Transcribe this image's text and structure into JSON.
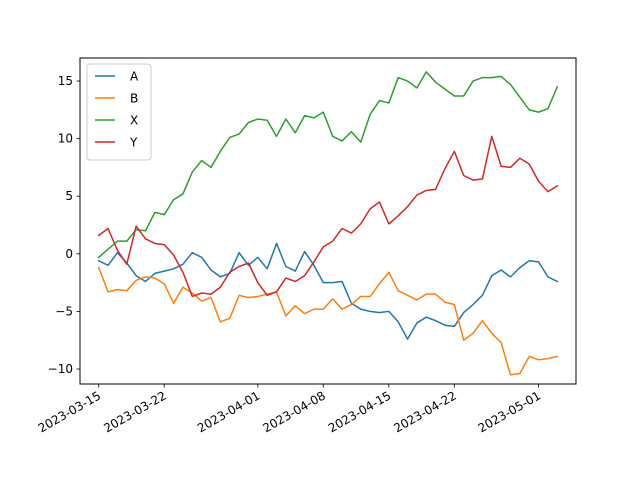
{
  "chart_data": {
    "type": "line",
    "title": "",
    "xlabel": "",
    "ylabel": "",
    "x_axis": {
      "kind": "date",
      "range": [
        "2023-03-13",
        "2023-05-05"
      ],
      "ticks": [
        "2023-03-15",
        "2023-03-22",
        "2023-04-01",
        "2023-04-08",
        "2023-04-15",
        "2023-04-22",
        "2023-05-01"
      ]
    },
    "y_axis": {
      "range": [
        -11.3,
        17
      ],
      "ticks": [
        -10,
        -5,
        0,
        5,
        10,
        15
      ],
      "tick_labels": [
        "−10",
        "−5",
        "0",
        "5",
        "10",
        "15"
      ]
    },
    "grid": false,
    "legend_position": "top-left",
    "series": [
      {
        "name": "A",
        "color": "#1f77b4",
        "dates": [
          "2023-03-15",
          "2023-03-16",
          "2023-03-17",
          "2023-03-18",
          "2023-03-19",
          "2023-03-20",
          "2023-03-21",
          "2023-03-22",
          "2023-03-23",
          "2023-03-24",
          "2023-03-25",
          "2023-03-26",
          "2023-03-27",
          "2023-03-28",
          "2023-03-29",
          "2023-03-30",
          "2023-03-31",
          "2023-04-01",
          "2023-04-02",
          "2023-04-03",
          "2023-04-04",
          "2023-04-05",
          "2023-04-06",
          "2023-04-07",
          "2023-04-08",
          "2023-04-09",
          "2023-04-10",
          "2023-04-11",
          "2023-04-12",
          "2023-04-13",
          "2023-04-14",
          "2023-04-15",
          "2023-04-16",
          "2023-04-17",
          "2023-04-18",
          "2023-04-19",
          "2023-04-20",
          "2023-04-21",
          "2023-04-22",
          "2023-04-23",
          "2023-04-24",
          "2023-04-25",
          "2023-04-26",
          "2023-04-27",
          "2023-04-28",
          "2023-04-29",
          "2023-04-30",
          "2023-05-01",
          "2023-05-02",
          "2023-05-03"
        ],
        "values": [
          -0.6,
          -1.0,
          0.1,
          -0.8,
          -1.9,
          -2.4,
          -1.7,
          -1.5,
          -1.3,
          -0.9,
          0.1,
          -0.3,
          -1.4,
          -2.0,
          -1.7,
          0.1,
          -1.0,
          -0.3,
          -1.3,
          0.9,
          -1.1,
          -1.5,
          0.2,
          -1.0,
          -2.5,
          -2.5,
          -2.4,
          -4.3,
          -4.8,
          -5.0,
          -5.1,
          -5.0,
          -5.9,
          -7.4,
          -6.0,
          -5.5,
          -5.8,
          -6.2,
          -6.3,
          -5.1,
          -4.4,
          -3.6,
          -1.9,
          -1.4,
          -2.0,
          -1.2,
          -0.6,
          -0.7,
          -2.0,
          -2.4
        ]
      },
      {
        "name": "B",
        "color": "#ff7f0e",
        "dates": [
          "2023-03-15",
          "2023-03-16",
          "2023-03-17",
          "2023-03-18",
          "2023-03-19",
          "2023-03-20",
          "2023-03-21",
          "2023-03-22",
          "2023-03-23",
          "2023-03-24",
          "2023-03-25",
          "2023-03-26",
          "2023-03-27",
          "2023-03-28",
          "2023-03-29",
          "2023-03-30",
          "2023-03-31",
          "2023-04-01",
          "2023-04-02",
          "2023-04-03",
          "2023-04-04",
          "2023-04-05",
          "2023-04-06",
          "2023-04-07",
          "2023-04-08",
          "2023-04-09",
          "2023-04-10",
          "2023-04-11",
          "2023-04-12",
          "2023-04-13",
          "2023-04-14",
          "2023-04-15",
          "2023-04-16",
          "2023-04-17",
          "2023-04-18",
          "2023-04-19",
          "2023-04-20",
          "2023-04-21",
          "2023-04-22",
          "2023-04-23",
          "2023-04-24",
          "2023-04-25",
          "2023-04-26",
          "2023-04-27",
          "2023-04-28",
          "2023-04-29",
          "2023-04-30",
          "2023-05-01",
          "2023-05-02",
          "2023-05-03"
        ],
        "values": [
          -1.2,
          -3.3,
          -3.1,
          -3.2,
          -2.3,
          -2.0,
          -2.1,
          -2.6,
          -4.3,
          -2.9,
          -3.4,
          -4.1,
          -3.8,
          -5.9,
          -5.6,
          -3.6,
          -3.8,
          -3.7,
          -3.5,
          -3.3,
          -5.4,
          -4.5,
          -5.2,
          -4.8,
          -4.8,
          -3.9,
          -4.8,
          -4.4,
          -3.7,
          -3.7,
          -2.6,
          -1.6,
          -3.2,
          -3.6,
          -4.0,
          -3.5,
          -3.5,
          -4.2,
          -4.4,
          -7.5,
          -6.9,
          -5.8,
          -6.9,
          -7.7,
          -10.5,
          -10.4,
          -8.9,
          -9.2,
          -9.1,
          -8.9
        ]
      },
      {
        "name": "X",
        "color": "#2ca02c",
        "dates": [
          "2023-03-15",
          "2023-03-16",
          "2023-03-17",
          "2023-03-18",
          "2023-03-19",
          "2023-03-20",
          "2023-03-21",
          "2023-03-22",
          "2023-03-23",
          "2023-03-24",
          "2023-03-25",
          "2023-03-26",
          "2023-03-27",
          "2023-03-28",
          "2023-03-29",
          "2023-03-30",
          "2023-03-31",
          "2023-04-01",
          "2023-04-02",
          "2023-04-03",
          "2023-04-04",
          "2023-04-05",
          "2023-04-06",
          "2023-04-07",
          "2023-04-08",
          "2023-04-09",
          "2023-04-10",
          "2023-04-11",
          "2023-04-12",
          "2023-04-13",
          "2023-04-14",
          "2023-04-15",
          "2023-04-16",
          "2023-04-17",
          "2023-04-18",
          "2023-04-19",
          "2023-04-20",
          "2023-04-21",
          "2023-04-22",
          "2023-04-23",
          "2023-04-24",
          "2023-04-25",
          "2023-04-26",
          "2023-04-27",
          "2023-04-28",
          "2023-04-29",
          "2023-04-30",
          "2023-05-01",
          "2023-05-02",
          "2023-05-03"
        ],
        "values": [
          -0.3,
          0.4,
          1.1,
          1.1,
          2.1,
          2.0,
          3.6,
          3.4,
          4.7,
          5.2,
          7.1,
          8.1,
          7.5,
          8.9,
          10.1,
          10.4,
          11.4,
          11.7,
          11.6,
          10.2,
          11.7,
          10.5,
          12.0,
          11.8,
          12.3,
          10.2,
          9.8,
          10.6,
          9.7,
          12.1,
          13.3,
          13.1,
          15.3,
          15.0,
          14.4,
          15.8,
          14.9,
          14.3,
          13.7,
          13.7,
          15.0,
          15.3,
          15.3,
          15.4,
          14.7,
          13.6,
          12.5,
          12.3,
          12.6,
          14.5
        ]
      },
      {
        "name": "Y",
        "color": "#d62728",
        "dates": [
          "2023-03-15",
          "2023-03-16",
          "2023-03-17",
          "2023-03-18",
          "2023-03-19",
          "2023-03-20",
          "2023-03-21",
          "2023-03-22",
          "2023-03-23",
          "2023-03-24",
          "2023-03-25",
          "2023-03-26",
          "2023-03-27",
          "2023-03-28",
          "2023-03-29",
          "2023-03-30",
          "2023-03-31",
          "2023-04-01",
          "2023-04-02",
          "2023-04-03",
          "2023-04-04",
          "2023-04-05",
          "2023-04-06",
          "2023-04-07",
          "2023-04-08",
          "2023-04-09",
          "2023-04-10",
          "2023-04-11",
          "2023-04-12",
          "2023-04-13",
          "2023-04-14",
          "2023-04-15",
          "2023-04-16",
          "2023-04-17",
          "2023-04-18",
          "2023-04-19",
          "2023-04-20",
          "2023-04-21",
          "2023-04-22",
          "2023-04-23",
          "2023-04-24",
          "2023-04-25",
          "2023-04-26",
          "2023-04-27",
          "2023-04-28",
          "2023-04-29",
          "2023-04-30",
          "2023-05-01",
          "2023-05-02",
          "2023-05-03"
        ],
        "values": [
          1.6,
          2.2,
          0.3,
          -0.9,
          2.4,
          1.3,
          0.9,
          0.8,
          -0.1,
          -1.6,
          -3.7,
          -3.4,
          -3.5,
          -2.9,
          -1.6,
          -1.1,
          -0.8,
          -2.5,
          -3.6,
          -3.3,
          -2.1,
          -2.4,
          -1.9,
          -0.7,
          0.6,
          1.1,
          2.2,
          1.8,
          2.6,
          3.9,
          4.5,
          2.6,
          3.3,
          4.1,
          5.1,
          5.5,
          5.6,
          7.4,
          8.9,
          6.8,
          6.4,
          6.5,
          10.2,
          7.6,
          7.5,
          8.3,
          7.8,
          6.3,
          5.4,
          5.9
        ]
      }
    ]
  }
}
